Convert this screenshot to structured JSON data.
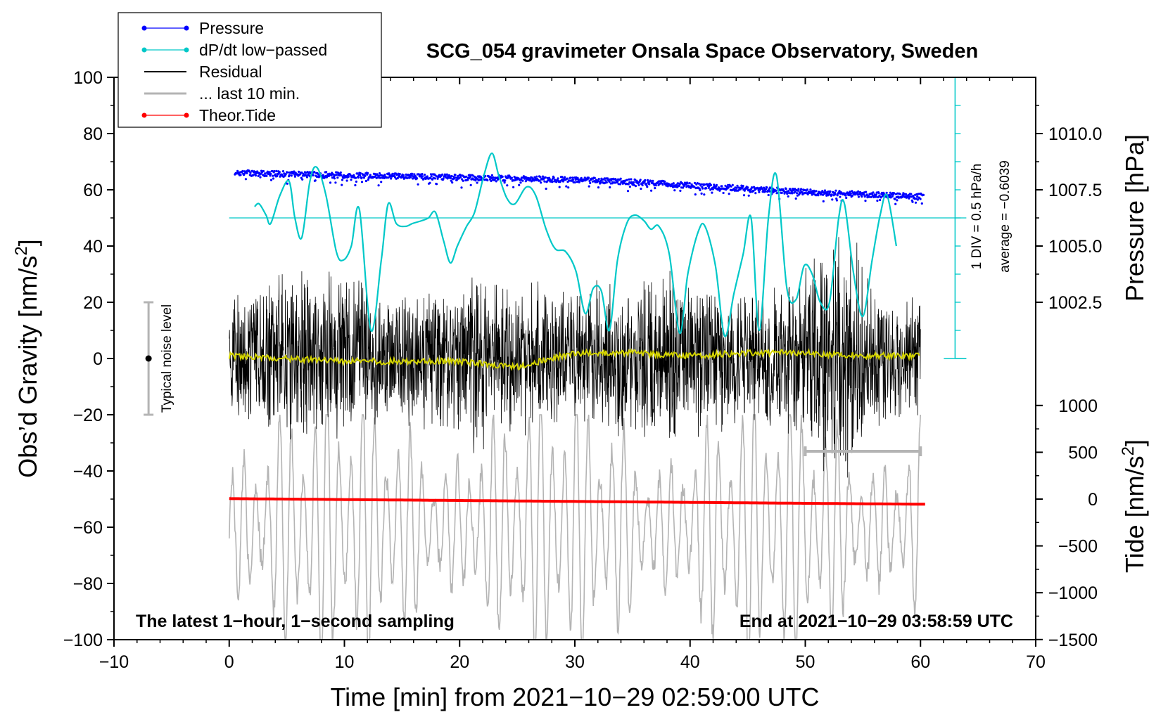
{
  "chart_data": {
    "type": "line",
    "title": "SCG_054 gravimeter Onsala Space Observatory, Sweden",
    "xlabel": "Time [min] from 2021−10−29 02:59:00 UTC",
    "ylabel_left_main": "Obs’d Gravity [nm/s",
    "ylabel_left_sup": "2",
    "ylabel_left_end": "]",
    "ylabel_right_pressure": "Pressure [hPa]",
    "ylabel_right_tide_main": "Tide [nm/s",
    "ylabel_right_tide_sup": "2",
    "ylabel_right_tide_end": "]",
    "xlim": [
      -10,
      70
    ],
    "ylim": [
      -100,
      100
    ],
    "x_ticks": [
      "−10",
      "0",
      "10",
      "20",
      "30",
      "40",
      "50",
      "60",
      "70"
    ],
    "y_ticks": [
      "−100",
      "−80",
      "−60",
      "−40",
      "−20",
      "0",
      "20",
      "40",
      "60",
      "80",
      "100"
    ],
    "pressure_ticks": [
      "1010.0",
      "1007.5",
      "1005.0",
      "1002.5"
    ],
    "pressure_tick_values": [
      1010.0,
      1007.5,
      1005.0,
      1002.5
    ],
    "tide_ticks": [
      "1000",
      "500",
      "0",
      "−500",
      "−1000",
      "−1500"
    ],
    "tide_tick_values": [
      1000,
      500,
      0,
      -500,
      -1000,
      -1500
    ],
    "legend": [
      {
        "label": "Pressure",
        "color": "#0000ff",
        "style": "line-dot"
      },
      {
        "label": "dP/dt low−passed",
        "color": "#00c8c8",
        "style": "line-dot"
      },
      {
        "label": "Residual",
        "color": "#000000",
        "style": "line"
      },
      {
        "label": "... last 10 min.",
        "color": "#b4b4b4",
        "style": "thick-line"
      },
      {
        "label": "Theor.Tide",
        "color": "#ff0000",
        "style": "line-dot"
      }
    ],
    "annotations": {
      "bottom_left": "The latest 1−hour, 1−second sampling",
      "bottom_right": "End at 2021−10−29 03:58:59 UTC",
      "noise_label": "Typical noise level",
      "dpdt_scale": "1 DIV = 0.5 hPa/h",
      "dpdt_average": "average = −0.6039"
    },
    "noise_bar": {
      "x": -7,
      "y_center": 0,
      "y_low": -20,
      "y_high": 20
    },
    "last10_bar": {
      "x_start": 50,
      "x_end": 60,
      "y": -33
    },
    "dpdt_reference_y": 50,
    "dpdt_axis_x": 63,
    "series": [
      {
        "name": "Pressure",
        "color": "#0000ff",
        "units": "hPa",
        "x": [
          0.5,
          5,
          10,
          15,
          20,
          25,
          30,
          35,
          40,
          45,
          50,
          55,
          60.3
        ],
        "values": [
          1008.25,
          1008.2,
          1008.15,
          1008.1,
          1008.05,
          1008.0,
          1007.95,
          1007.85,
          1007.7,
          1007.55,
          1007.4,
          1007.3,
          1007.2
        ]
      },
      {
        "name": "dP/dt low−passed",
        "color": "#00c8c8",
        "units": "nm/s2 display",
        "x": [
          2.2,
          2.6,
          3.2,
          3.6,
          4.4,
          5.2,
          5.7,
          6.3,
          7.0,
          7.6,
          8.4,
          9.3,
          9.9,
          10.6,
          11.3,
          12.3,
          13.2,
          13.8,
          14.5,
          15.3,
          15.9,
          16.7,
          17.3,
          17.9,
          18.6,
          19.2,
          19.8,
          20.6,
          21.3,
          22.1,
          22.8,
          23.4,
          24.1,
          24.8,
          25.8,
          26.6,
          27.5,
          28.3,
          29.2,
          30.1,
          30.9,
          31.6,
          32.3,
          33.0,
          33.7,
          34.5,
          35.2,
          36.0,
          36.6,
          37.3,
          38.2,
          39.1,
          39.8,
          40.7,
          41.3,
          42.2,
          43.0,
          43.8,
          44.6,
          45.3,
          46.0,
          46.8,
          47.5,
          48.4,
          49.2,
          49.9,
          50.6,
          51.3,
          52.1,
          52.9,
          53.4,
          54.2,
          55.0,
          55.8,
          56.5,
          57.1,
          57.9
        ],
        "values": [
          54,
          55,
          51,
          48,
          58,
          63,
          50,
          43,
          63,
          68,
          58,
          38,
          35,
          40,
          53,
          10,
          35,
          55,
          48,
          47,
          48,
          49,
          50,
          52,
          42,
          34,
          40,
          47,
          52,
          65,
          73,
          65,
          57,
          55,
          61,
          58,
          46,
          39,
          38,
          31,
          16,
          25,
          24,
          10,
          35,
          48,
          51,
          49,
          46,
          47,
          37,
          9,
          30,
          45,
          47,
          33,
          8,
          23,
          37,
          50,
          10,
          50,
          65,
          25,
          21,
          33,
          30,
          20,
          20,
          50,
          55,
          30,
          15,
          35,
          51,
          58,
          40
        ]
      },
      {
        "name": "Residual",
        "color": "#000000",
        "units": "nm/s2",
        "x": [
          0,
          60
        ],
        "values": [
          0,
          0
        ],
        "envelope_pm": [
          12,
          35
        ]
      },
      {
        "name": "Residual low−passed",
        "color": "#d4d400",
        "units": "nm/s2",
        "x": [
          0,
          5,
          10,
          15,
          20,
          25,
          30,
          35,
          40,
          45,
          50,
          55,
          60
        ],
        "values": [
          1,
          0,
          -1,
          -1,
          -1,
          -3,
          2,
          2,
          1,
          2,
          2,
          1,
          1
        ]
      },
      {
        "name": "... last 10 min.",
        "color": "#b4b4b4",
        "units": "nm/s2 (shifted)",
        "x": [
          0,
          60
        ],
        "values": [
          -60,
          -60
        ],
        "envelope_pm": [
          20,
          50
        ]
      },
      {
        "name": "Theor.Tide",
        "color": "#ff0000",
        "units": "nm/s2",
        "x": [
          0,
          10,
          20,
          30,
          40,
          50,
          60.5
        ],
        "values": [
          5,
          -5,
          -15,
          -25,
          -35,
          -45,
          -55
        ]
      }
    ]
  }
}
